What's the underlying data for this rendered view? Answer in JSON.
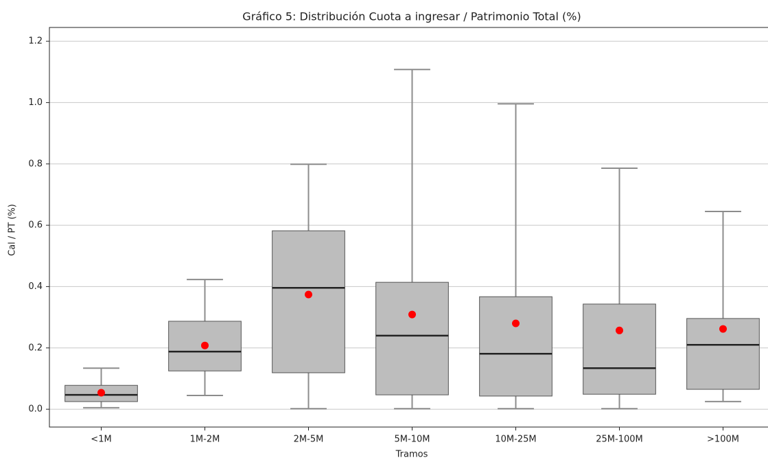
{
  "chart_data": {
    "type": "box",
    "title": "Gráfico 5: Distribución Cuota a ingresar / Patrimonio Total (%)",
    "xlabel": "Tramos",
    "ylabel": "Cal / PT (%)",
    "categories": [
      "<1M",
      "1M-2M",
      "2M-5M",
      "5M-10M",
      "10M-25M",
      "25M-100M",
      ">100M"
    ],
    "whisker_low": [
      0.005,
      0.045,
      0.002,
      0.002,
      0.002,
      0.002,
      0.025
    ],
    "q1": [
      0.025,
      0.125,
      0.119,
      0.047,
      0.043,
      0.049,
      0.065
    ],
    "median": [
      0.047,
      0.188,
      0.396,
      0.24,
      0.181,
      0.134,
      0.21
    ],
    "q3": [
      0.078,
      0.287,
      0.582,
      0.414,
      0.367,
      0.343,
      0.296
    ],
    "whisker_high": [
      0.134,
      0.423,
      0.799,
      1.108,
      0.996,
      0.786,
      0.645
    ],
    "mean": [
      0.054,
      0.208,
      0.374,
      0.309,
      0.28,
      0.257,
      0.262
    ],
    "box_color": "#bdbdbd",
    "whisker_color": "#8c8c8c",
    "median_color": "#222222",
    "mean_color": "#ff0000",
    "ylim": [
      -0.058,
      1.245
    ],
    "yticks": [
      {
        "value": 0,
        "label": "0.0"
      },
      0.2,
      0.4,
      0.6,
      0.8,
      {
        "value": 1,
        "label": "1.0"
      },
      1.2
    ],
    "grid": true
  }
}
